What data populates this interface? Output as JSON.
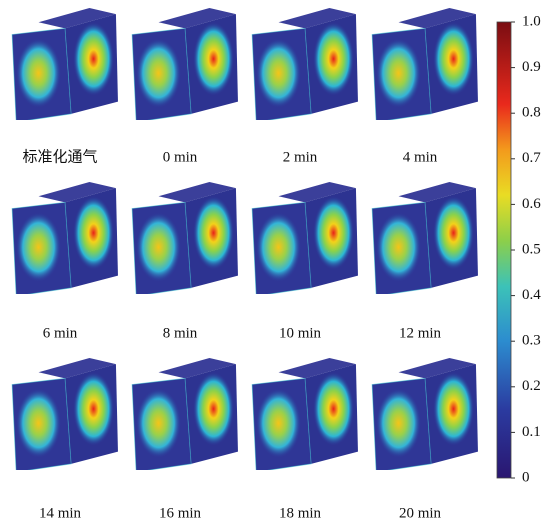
{
  "panels": [
    {
      "label": "标准化通气"
    },
    {
      "label": "0 min"
    },
    {
      "label": "2 min"
    },
    {
      "label": "4 min"
    },
    {
      "label": "6 min"
    },
    {
      "label": "8 min"
    },
    {
      "label": "10 min"
    },
    {
      "label": "12 min"
    },
    {
      "label": "14 min"
    },
    {
      "label": "16 min"
    },
    {
      "label": "18 min"
    },
    {
      "label": "20 min"
    }
  ],
  "colorbar": {
    "range": [
      0,
      1
    ],
    "ticks": [
      0,
      0.1,
      0.2,
      0.3,
      0.4,
      0.5,
      0.6,
      0.7,
      0.8,
      0.9,
      {
        "value": 1,
        "label": "1.0"
      }
    ]
  }
}
